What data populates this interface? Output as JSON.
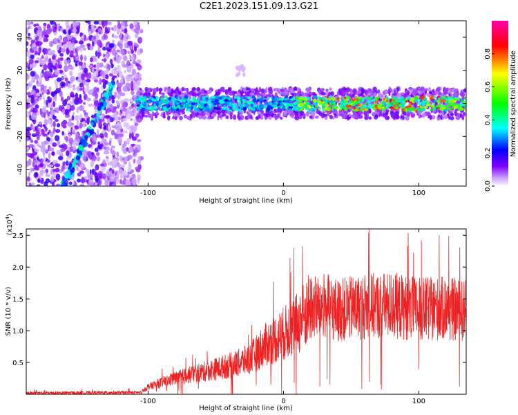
{
  "title": "C2E1.2023.151.09.13.G21",
  "chart_data": [
    {
      "type": "heatmap",
      "xlabel": "Height of straight line (km)",
      "ylabel": "Frequency (Hz)",
      "xlim": [
        -190,
        135
      ],
      "ylim": [
        -50,
        50
      ],
      "x_ticks": [
        -100,
        0,
        100
      ],
      "x_tick_labels": [
        "-100",
        "0",
        "100"
      ],
      "y_ticks": [
        -40,
        -20,
        0,
        20,
        40
      ],
      "y_tick_labels": [
        "-40",
        "-20",
        "0",
        "20",
        "40"
      ],
      "colorbar": {
        "label": "Normalized spectral amplitude",
        "range": [
          0,
          1
        ],
        "ticks": [
          0.0,
          0.2,
          0.4,
          0.6,
          0.8
        ],
        "tick_labels": [
          "0.0",
          "0.2",
          "0.4",
          "0.6",
          "0.8"
        ],
        "colors": [
          "#ffffff",
          "#8000ff",
          "#0000ff",
          "#00ffff",
          "#00ff00",
          "#ffff00",
          "#ff0000",
          "#ff00aa"
        ]
      },
      "features": {
        "noise_region_x": [
          -190,
          -105
        ],
        "diagonal_trace": {
          "x": [
            -163,
            -126
          ],
          "y": [
            -50,
            12
          ]
        },
        "main_band": {
          "x": [
            -108,
            135
          ],
          "y_center": 0,
          "y_halfwidth": 4
        }
      }
    },
    {
      "type": "line",
      "xlabel": "Height of straight line (km)",
      "ylabel": "SNR (10 * v/v)",
      "y_scale_label": "(x10",
      "y_scale_exponent": "4",
      "xlim": [
        -190,
        135
      ],
      "ylim": [
        0,
        26000
      ],
      "x_ticks": [
        -100,
        0,
        100
      ],
      "x_tick_labels": [
        "-100",
        "0",
        "100"
      ],
      "y_ticks": [
        5000,
        10000,
        15000,
        20000,
        25000
      ],
      "y_tick_labels": [
        "0.5",
        "1.0",
        "1.5",
        "2.0",
        "2.5"
      ],
      "series": [
        {
          "color": "#ee2222",
          "envelope_x": [
            -190,
            -105,
            -100,
            -80,
            -60,
            -40,
            -25,
            -15,
            0,
            10,
            20,
            30,
            40,
            60,
            80,
            100,
            120,
            135
          ],
          "envelope_y": [
            200,
            300,
            1200,
            2500,
            3500,
            4500,
            5500,
            7500,
            9500,
            11000,
            13500,
            14000,
            13200,
            13800,
            14000,
            13300,
            13500,
            13000
          ]
        }
      ]
    }
  ]
}
